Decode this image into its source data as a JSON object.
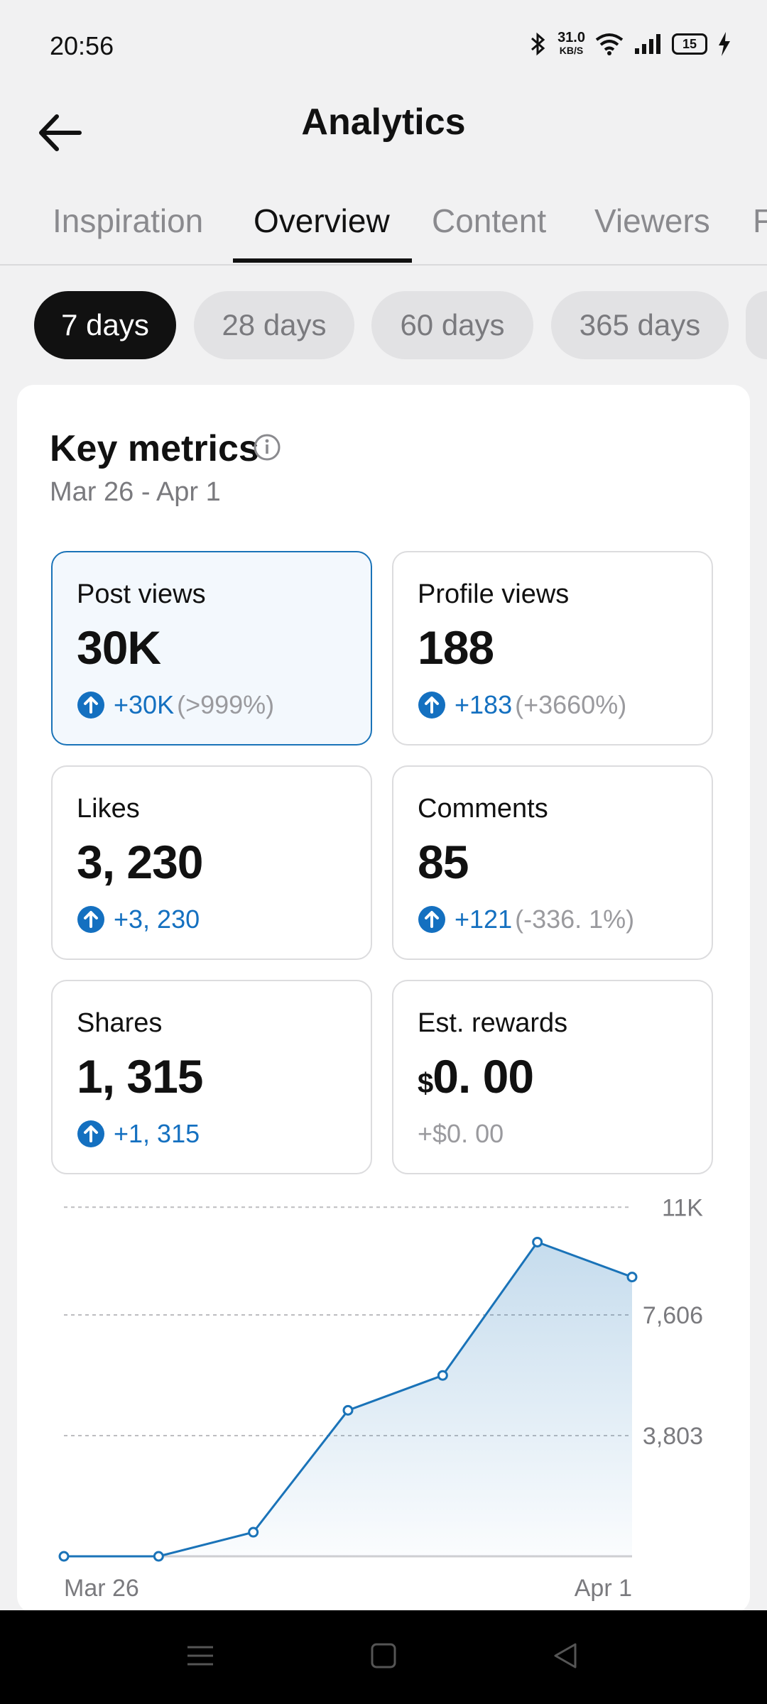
{
  "status_bar": {
    "time": "20:56",
    "net_speed": "31.0",
    "net_unit": "KB/S",
    "battery": "15"
  },
  "header": {
    "title": "Analytics"
  },
  "tabs": [
    {
      "label": "Inspiration",
      "active": false
    },
    {
      "label": "Overview",
      "active": true
    },
    {
      "label": "Content",
      "active": false
    },
    {
      "label": "Viewers",
      "active": false
    },
    {
      "label": "F",
      "active": false
    }
  ],
  "range_chips": [
    {
      "label": "7 days",
      "active": true
    },
    {
      "label": "28 days",
      "active": false
    },
    {
      "label": "60 days",
      "active": false
    },
    {
      "label": "365 days",
      "active": false
    },
    {
      "label": "",
      "active": false
    }
  ],
  "key_metrics": {
    "title": "Key metrics",
    "date_range": "Mar 26 - Apr 1",
    "metrics": [
      {
        "label": "Post views",
        "value": "30K",
        "delta": "+30K",
        "pct": "(>999%)",
        "selected": true
      },
      {
        "label": "Profile views",
        "value": "188",
        "delta": "+183",
        "pct": "(+3660%)",
        "selected": false
      },
      {
        "label": "Likes",
        "value": "3, 230",
        "delta": "+3, 230",
        "pct": "",
        "selected": false
      },
      {
        "label": "Comments",
        "value": "85",
        "delta": "+121",
        "pct": "(-336. 1%)",
        "selected": false
      },
      {
        "label": "Shares",
        "value": "1, 315",
        "delta": "+1, 315",
        "pct": "",
        "selected": false
      },
      {
        "label": "Est.  rewards",
        "currency": "$",
        "value": "0. 00",
        "delta": "+$0. 00",
        "pct": "",
        "selected": false
      }
    ]
  },
  "chart_data": {
    "type": "area",
    "x": [
      "Mar 26",
      "Mar 27",
      "Mar 28",
      "Mar 29",
      "Mar 30",
      "Mar 31",
      "Apr 1"
    ],
    "x_tick_labels": [
      "Mar 26",
      "Apr 1"
    ],
    "series": [
      {
        "values": [
          0,
          0,
          760,
          4600,
          5700,
          9900,
          8800
        ]
      }
    ],
    "y_ticks": [
      3803,
      7606,
      11000
    ],
    "y_tick_labels": [
      "3,803",
      "7,606",
      "11K"
    ],
    "ylim": [
      0,
      11409
    ],
    "grid": true,
    "color": "#1a73b8"
  }
}
